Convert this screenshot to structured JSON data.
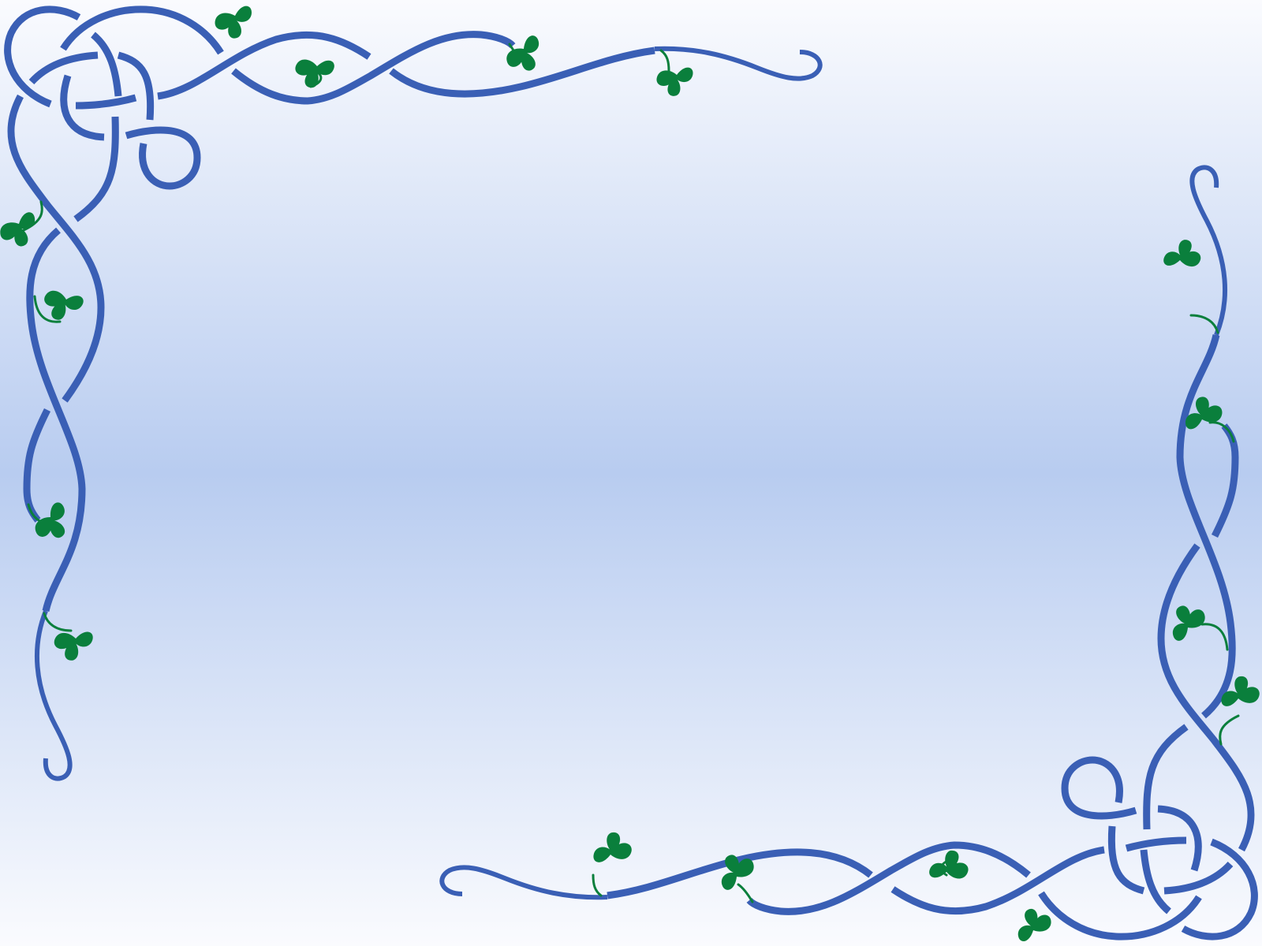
{
  "colors": {
    "background_edge": "#FAFBFE",
    "background_center": "#B8CCF0",
    "vine": "#3A5FB5",
    "leaf": "#0A7F3C"
  },
  "icons": {
    "corner_top_left": "celtic-knot-icon",
    "corner_bottom_right": "celtic-knot-icon",
    "leaf": "ivy-leaf-icon"
  }
}
